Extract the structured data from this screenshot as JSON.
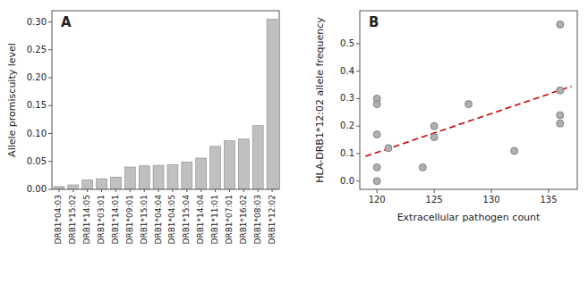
{
  "chart_data": [
    {
      "type": "bar",
      "title": "A",
      "categories": [
        "DRB1*04:03",
        "DRB1*15:02",
        "DRB1*14:05",
        "DRB1*03:01",
        "DRB1*14:01",
        "DRB1*09:01",
        "DRB1*15:01",
        "DRB1*04:04",
        "DRB1*04:05",
        "DRB1*15:04",
        "DRB1*14:04",
        "DRB1*11:01",
        "DRB1*07:01",
        "DRB1*16:02",
        "DRB1*08:03",
        "DRB1*12:02"
      ],
      "values": [
        0.005,
        0.008,
        0.017,
        0.019,
        0.022,
        0.04,
        0.042,
        0.043,
        0.044,
        0.049,
        0.056,
        0.077,
        0.087,
        0.09,
        0.114,
        0.305
      ],
      "color": "#c0c0c0",
      "ylabel": "Allele promiscuity level",
      "ylim": [
        0.0,
        0.32
      ],
      "yticks": [
        {
          "value": 0.0,
          "label": "0.00"
        },
        0.05,
        {
          "value": 0.1,
          "label": "0.10"
        },
        0.15,
        {
          "value": 0.2,
          "label": "0.20"
        },
        0.25,
        {
          "value": 0.3,
          "label": "0.30"
        }
      ]
    },
    {
      "type": "scatter",
      "title": "B",
      "series": [
        {
          "type": "scatter",
          "color": "#b0b0b0",
          "x": [
            120,
            120,
            120,
            120,
            120,
            121,
            124,
            125,
            125,
            128,
            132,
            136,
            136,
            136,
            136
          ],
          "values": [
            0.3,
            0.28,
            0.17,
            0.05,
            0.0,
            0.12,
            0.05,
            0.2,
            0.16,
            0.28,
            0.11,
            0.57,
            0.33,
            0.24,
            0.21
          ]
        },
        {
          "type": "line",
          "color": "#cc0000",
          "line_style": "dashed",
          "x": [
            119.0,
            137.0
          ],
          "values": [
            0.09,
            0.345
          ]
        }
      ],
      "xlabel": "Extracellular pathogen count",
      "ylabel": "HLA-DRB1*12:02 allele frequency",
      "xlim": [
        118.5,
        137.5
      ],
      "ylim": [
        -0.03,
        0.62
      ],
      "xticks": [
        120,
        125,
        130,
        135
      ],
      "yticks": [
        {
          "value": 0.0,
          "label": "0.0"
        },
        0.1,
        0.2,
        0.3,
        0.4,
        0.5
      ]
    }
  ]
}
